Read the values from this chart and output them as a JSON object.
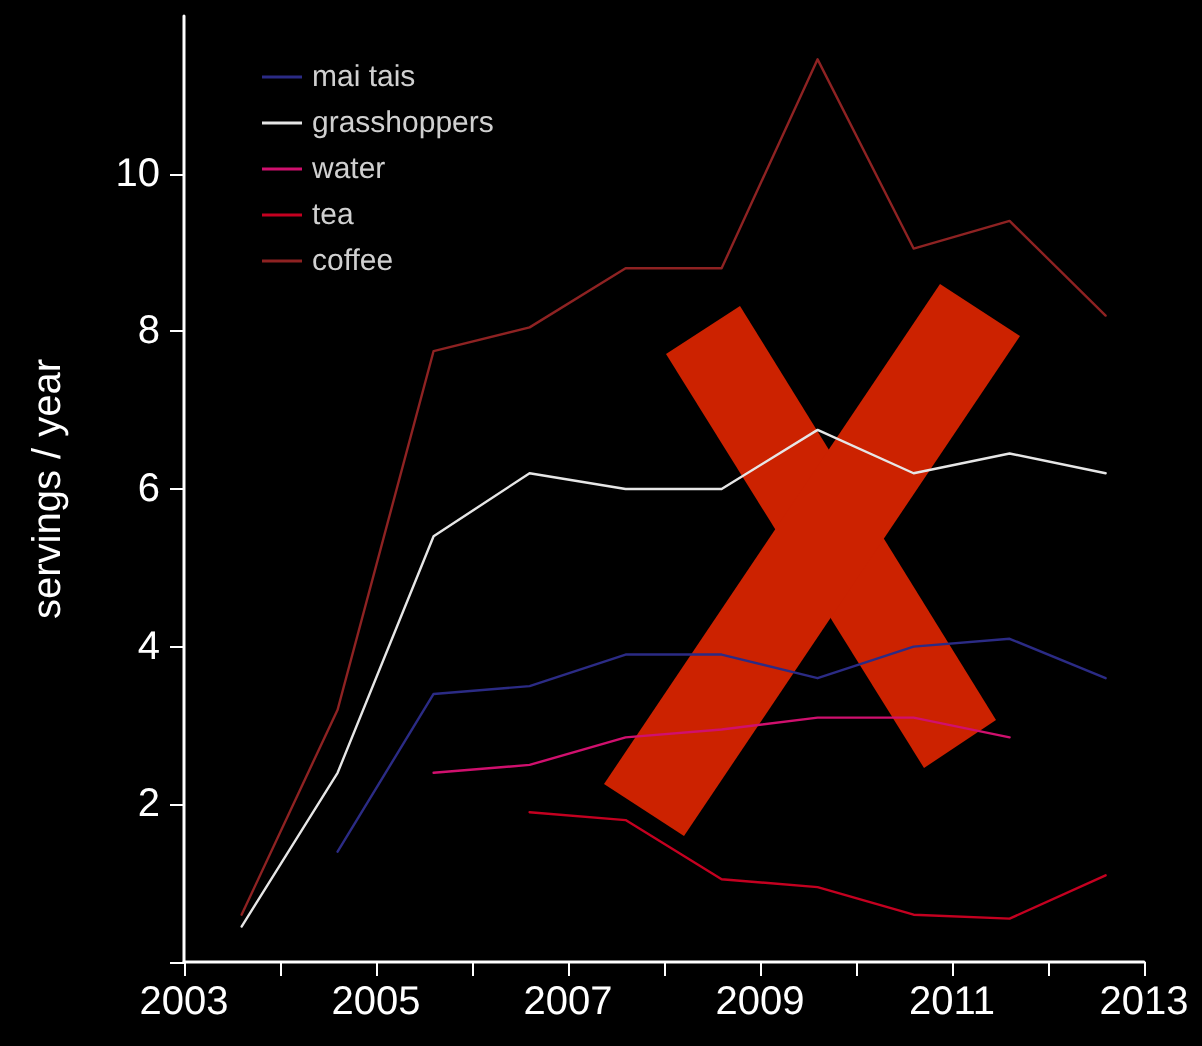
{
  "chart_data": {
    "type": "line",
    "ylabel": "servings / year",
    "xlim": [
      2003,
      2013
    ],
    "xticks": [
      2003,
      {
        "value": 2004,
        "label": null
      },
      2005,
      {
        "value": 2006,
        "label": null
      },
      2007,
      {
        "value": 2008,
        "label": null
      },
      2009,
      {
        "value": 2010,
        "label": null
      },
      2011,
      {
        "value": 2012,
        "label": null
      },
      2013
    ],
    "ylim": [
      0,
      12
    ],
    "yticks": [
      {
        "value": 0,
        "label": null
      },
      2,
      4,
      6,
      8,
      10
    ],
    "grid": false,
    "legend": "top left",
    "marker": "none",
    "line_style": "solid",
    "series": [
      {
        "name": "mai tais",
        "color": "#2b2b85",
        "x": [
          2004.6,
          2005.6,
          2006.6,
          2007.6,
          2008.6,
          2009.6,
          2010.6,
          2011.6,
          2012.6
        ],
        "values": [
          1.4,
          3.4,
          3.5,
          3.9,
          3.9,
          3.6,
          4.0,
          4.1,
          3.6
        ]
      },
      {
        "name": "grasshoppers",
        "color": "#e6e6e6",
        "x": [
          2003.6,
          2004.6,
          2005.6,
          2006.6,
          2007.6,
          2008.6,
          2009.6,
          2010.6,
          2011.6,
          2012.6
        ],
        "values": [
          0.45,
          2.4,
          5.4,
          6.2,
          6.0,
          6.0,
          6.75,
          6.2,
          6.45,
          6.2
        ]
      },
      {
        "name": "water",
        "color": "#d0106e",
        "x": [
          2005.6,
          2006.6,
          2007.6,
          2008.6,
          2009.6,
          2010.6,
          2011.6
        ],
        "values": [
          2.4,
          2.5,
          2.85,
          2.95,
          3.1,
          3.1,
          2.85
        ]
      },
      {
        "name": "tea",
        "color": "#c40020",
        "x": [
          2006.6,
          2007.6,
          2008.6,
          2009.6,
          2010.6,
          2011.6,
          2012.6
        ],
        "values": [
          1.9,
          1.8,
          1.05,
          0.95,
          0.6,
          0.55,
          1.1
        ]
      },
      {
        "name": "coffee",
        "color": "#8e2222",
        "x": [
          2003.6,
          2004.6,
          2005.6,
          2006.6,
          2007.6,
          2008.6,
          2009.6,
          2010.6,
          2011.6,
          2012.6
        ],
        "values": [
          0.6,
          3.2,
          7.75,
          8.05,
          8.8,
          8.8,
          11.45,
          9.05,
          9.4,
          8.2
        ]
      }
    ]
  }
}
